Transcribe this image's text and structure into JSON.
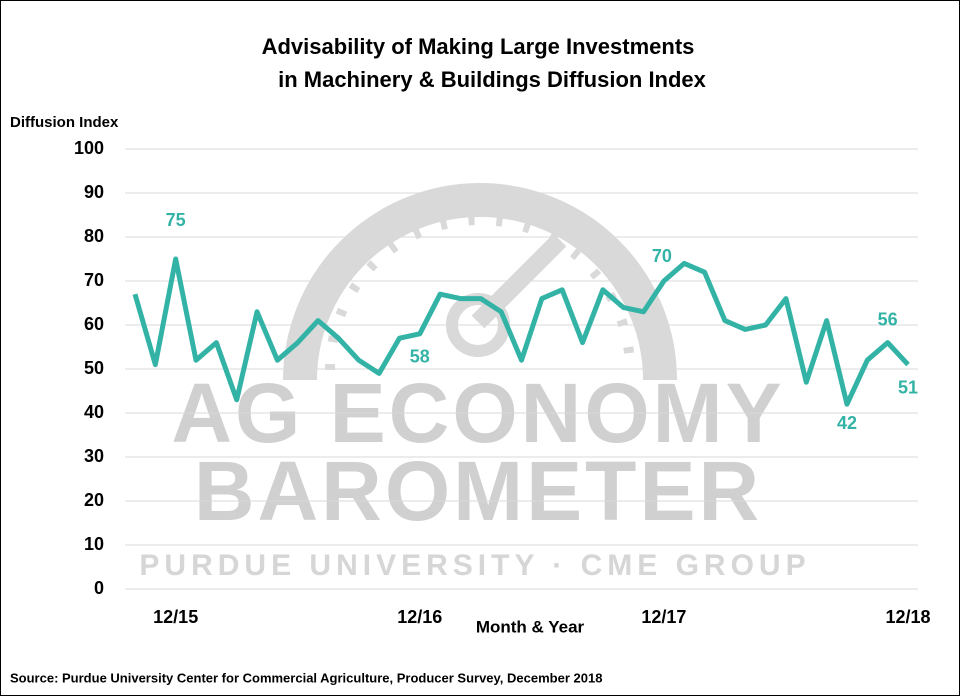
{
  "chart_data": {
    "type": "line",
    "title": [
      "Advisability of Making Large Investments",
      "in Machinery & Buildings Diffusion Index"
    ],
    "y_label": "Diffusion Index",
    "x_label": "Month & Year",
    "source": "Source: Purdue University Center for Commercial Agriculture, Producer Survey, December 2018",
    "watermark": [
      "AG ECONOMY",
      "BAROMETER",
      "PURDUE UNIVERSITY  ·  CME GROUP"
    ],
    "categories": [
      null,
      null,
      "12/15",
      null,
      null,
      null,
      null,
      null,
      null,
      null,
      null,
      null,
      null,
      null,
      "12/16",
      null,
      null,
      null,
      null,
      null,
      null,
      null,
      null,
      null,
      null,
      null,
      "12/17",
      null,
      null,
      null,
      null,
      null,
      null,
      null,
      null,
      null,
      null,
      null,
      "12/18"
    ],
    "series": [
      {
        "name": "Diffusion Index",
        "color": "#33b3a6",
        "values": [
          67,
          51,
          75,
          52,
          56,
          43,
          63,
          52,
          56,
          61,
          57,
          52,
          49,
          57,
          58,
          67,
          66,
          66,
          63,
          52,
          66,
          68,
          56,
          68,
          64,
          63,
          70,
          74,
          72,
          61,
          59,
          60,
          66,
          47,
          61,
          42,
          52,
          56,
          51
        ]
      }
    ],
    "labeled_indices": [
      2,
      14,
      26,
      35,
      37,
      38
    ],
    "ylim": [
      0,
      100
    ],
    "yticks": [
      0,
      10,
      20,
      30,
      40,
      50,
      60,
      70,
      80,
      90,
      100
    ],
    "grid": true
  }
}
